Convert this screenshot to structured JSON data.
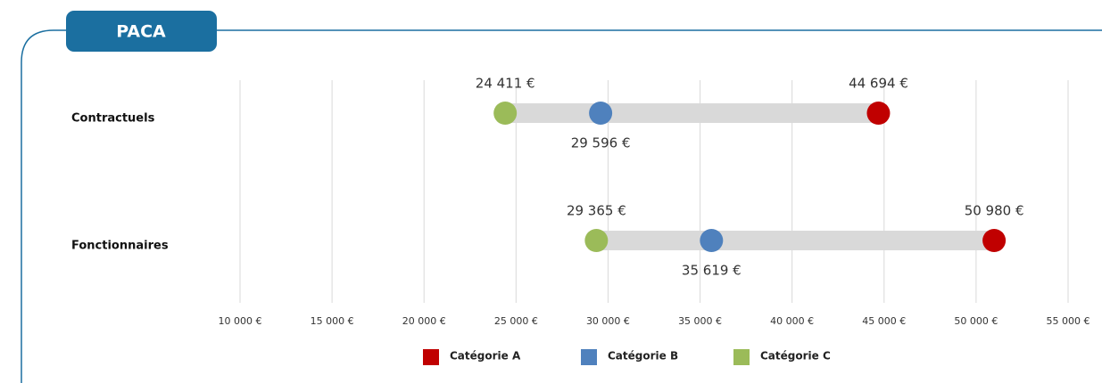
{
  "header": {
    "title": "PACA"
  },
  "chart_data": {
    "type": "dot",
    "categories": [
      "Contractuels",
      "Fonctionnaires"
    ],
    "series": [
      {
        "name": "Catégorie A",
        "color": "#c00000",
        "values": [
          44694,
          50980
        ],
        "value_labels": [
          "44 694 €",
          "50 980 €"
        ]
      },
      {
        "name": "Catégorie B",
        "color": "#4f81bd",
        "values": [
          29596,
          35619
        ],
        "value_labels": [
          "29 596 €",
          "35 619 €"
        ]
      },
      {
        "name": "Catégorie C",
        "color": "#9bbb59",
        "values": [
          24411,
          29365
        ],
        "value_labels": [
          "24 411 €",
          "29 365 €"
        ]
      }
    ],
    "range_color": "#d9d9d9",
    "xlim": [
      10000,
      55000
    ],
    "xticks": [
      {
        "value": 10000,
        "label": "10 000 €"
      },
      {
        "value": 15000,
        "label": "15 000 €"
      },
      {
        "value": 20000,
        "label": "20 000 €"
      },
      {
        "value": 25000,
        "label": "25 000 €"
      },
      {
        "value": 30000,
        "label": "30 000 €"
      },
      {
        "value": 35000,
        "label": "35 000 €"
      },
      {
        "value": 40000,
        "label": "40 000 €"
      },
      {
        "value": 45000,
        "label": "45 000 €"
      },
      {
        "value": 50000,
        "label": "50 000 €"
      },
      {
        "value": 55000,
        "label": "55 000 €"
      }
    ],
    "grid": true,
    "legend": "bottom"
  }
}
